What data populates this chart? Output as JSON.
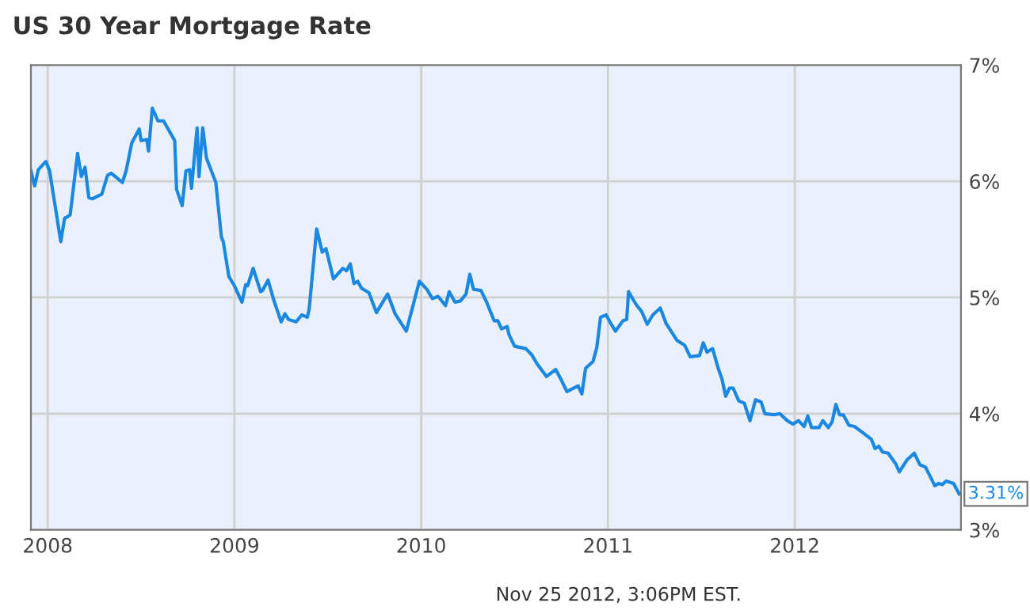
{
  "chart_data": {
    "type": "line",
    "title": "US 30 Year Mortgage Rate",
    "x": [
      2007.91,
      2007.93,
      2007.95,
      2007.99,
      2008.01,
      2008.07,
      2008.09,
      2008.12,
      2008.16,
      2008.18,
      2008.2,
      2008.22,
      2008.24,
      2008.29,
      2008.32,
      2008.34,
      2008.4,
      2008.42,
      2008.45,
      2008.49,
      2008.5,
      2008.53,
      2008.54,
      2008.56,
      2008.59,
      2008.62,
      2008.68,
      2008.69,
      2008.72,
      2008.74,
      2008.76,
      2008.77,
      2008.8,
      2008.81,
      2008.83,
      2008.85,
      2008.9,
      2008.93,
      2008.94,
      2008.97,
      2009.0,
      2009.04,
      2009.06,
      2009.07,
      2009.1,
      2009.14,
      2009.15,
      2009.18,
      2009.21,
      2009.25,
      2009.27,
      2009.29,
      2009.33,
      2009.36,
      2009.39,
      2009.4,
      2009.44,
      2009.47,
      2009.49,
      2009.53,
      2009.58,
      2009.6,
      2009.62,
      2009.64,
      2009.66,
      2009.68,
      2009.72,
      2009.76,
      2009.82,
      2009.86,
      2009.92,
      2009.99,
      2010.03,
      2010.06,
      2010.09,
      2010.13,
      2010.15,
      2010.18,
      2010.21,
      2010.24,
      2010.26,
      2010.28,
      2010.32,
      2010.35,
      2010.39,
      2010.41,
      2010.43,
      2010.46,
      2010.47,
      2010.5,
      2010.56,
      2010.59,
      2010.62,
      2010.67,
      2010.72,
      2010.75,
      2010.78,
      2010.84,
      2010.86,
      2010.88,
      2010.92,
      2010.94,
      2010.96,
      2010.99,
      2011.01,
      2011.04,
      2011.08,
      2011.1,
      2011.11,
      2011.15,
      2011.18,
      2011.21,
      2011.24,
      2011.28,
      2011.31,
      2011.37,
      2011.41,
      2011.44,
      2011.49,
      2011.51,
      2011.53,
      2011.56,
      2011.59,
      2011.61,
      2011.63,
      2011.65,
      2011.67,
      2011.7,
      2011.73,
      2011.76,
      2011.79,
      2011.82,
      2011.84,
      2011.89,
      2011.92,
      2011.96,
      2011.99,
      2012.02,
      2012.05,
      2012.07,
      2012.09,
      2012.13,
      2012.15,
      2012.18,
      2012.2,
      2012.22,
      2012.24,
      2012.26,
      2012.29,
      2012.32,
      2012.37,
      2012.41,
      2012.43,
      2012.45,
      2012.47,
      2012.5,
      2012.54,
      2012.56,
      2012.6,
      2012.64,
      2012.67,
      2012.7,
      2012.75,
      2012.77,
      2012.79,
      2012.81,
      2012.85,
      2012.88
    ],
    "series": [
      {
        "color": "#1a87e0",
        "values": [
          6.09,
          5.96,
          6.1,
          6.17,
          6.09,
          5.48,
          5.68,
          5.71,
          6.24,
          6.04,
          6.12,
          5.86,
          5.85,
          5.89,
          6.05,
          6.07,
          5.99,
          6.09,
          6.33,
          6.45,
          6.35,
          6.36,
          6.26,
          6.63,
          6.52,
          6.52,
          6.35,
          5.93,
          5.79,
          6.09,
          6.1,
          5.94,
          6.46,
          6.04,
          6.46,
          6.2,
          5.99,
          5.52,
          5.48,
          5.18,
          5.1,
          4.96,
          5.11,
          5.1,
          5.25,
          5.05,
          5.06,
          5.15,
          4.98,
          4.79,
          4.86,
          4.81,
          4.79,
          4.85,
          4.83,
          4.9,
          5.59,
          5.39,
          5.42,
          5.16,
          5.25,
          5.23,
          5.29,
          5.12,
          5.14,
          5.08,
          5.04,
          4.87,
          5.03,
          4.86,
          4.71,
          5.14,
          5.07,
          4.99,
          5.01,
          4.93,
          5.05,
          4.96,
          4.97,
          5.03,
          5.2,
          5.07,
          5.06,
          4.96,
          4.8,
          4.8,
          4.73,
          4.75,
          4.68,
          4.58,
          4.56,
          4.51,
          4.43,
          4.32,
          4.38,
          4.29,
          4.19,
          4.24,
          4.17,
          4.39,
          4.45,
          4.57,
          4.83,
          4.85,
          4.79,
          4.71,
          4.8,
          4.81,
          5.05,
          4.94,
          4.88,
          4.77,
          4.85,
          4.91,
          4.78,
          4.63,
          4.59,
          4.49,
          4.5,
          4.61,
          4.53,
          4.56,
          4.39,
          4.3,
          4.15,
          4.22,
          4.22,
          4.11,
          4.09,
          3.94,
          4.12,
          4.1,
          4.0,
          3.99,
          4.0,
          3.94,
          3.91,
          3.94,
          3.89,
          3.98,
          3.88,
          3.88,
          3.94,
          3.88,
          3.93,
          4.08,
          3.99,
          3.99,
          3.9,
          3.89,
          3.83,
          3.78,
          3.7,
          3.72,
          3.67,
          3.66,
          3.57,
          3.5,
          3.6,
          3.66,
          3.56,
          3.54,
          3.38,
          3.4,
          3.39,
          3.42,
          3.4,
          3.31
        ]
      }
    ],
    "xlim": [
      2007.91,
      2012.89
    ],
    "xticks": [
      2008,
      2009,
      2010,
      2011,
      2012
    ],
    "ylim": [
      3,
      7
    ],
    "yticks": [
      {
        "value": 3,
        "label": "3%"
      },
      {
        "value": 4,
        "label": "4%"
      },
      {
        "value": 5,
        "label": "5%"
      },
      {
        "value": 6,
        "label": "6%"
      },
      {
        "value": 7,
        "label": "7%"
      }
    ],
    "grid": true,
    "marker": "none",
    "line_style": "solid",
    "annotations": [
      {
        "text": "3.31%",
        "x": 2012.88,
        "y": 3.31
      },
      "Nov 25 2012, 3:06PM EST."
    ]
  }
}
